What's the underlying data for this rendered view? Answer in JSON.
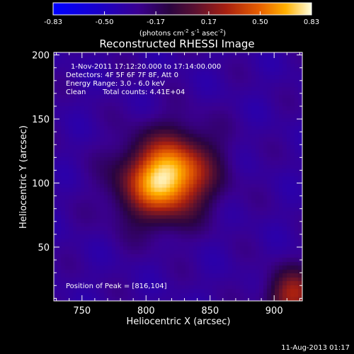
{
  "chart_data": {
    "type": "heatmap",
    "title": "Reconstructed RHESSI Image",
    "xlabel": "Heliocentric X (arcsec)",
    "ylabel": "Heliocentric Y (arcsec)",
    "xlim": [
      728,
      922
    ],
    "ylim": [
      8,
      202
    ],
    "x_ticks": [
      "750",
      "800",
      "850",
      "900"
    ],
    "x_tick_values": [
      750,
      800,
      850,
      900
    ],
    "y_ticks": [
      "50",
      "100",
      "150",
      "200"
    ],
    "y_tick_values": [
      50,
      100,
      150,
      200
    ],
    "colorbar": {
      "min": -0.83,
      "max": 0.83,
      "tick_labels": [
        "-0.83",
        "-0.50",
        "-0.17",
        "0.17",
        "0.50",
        "0.83"
      ],
      "tick_values": [
        -0.83,
        -0.5,
        -0.17,
        0.17,
        0.5,
        0.83
      ],
      "label_main": "(photons cm",
      "label_sup1": "-2",
      "label_mid1": " s",
      "label_sup2": "-1",
      "label_mid2": " asec",
      "label_sup3": "-2",
      "label_end": ")"
    },
    "annotations": {
      "time_range": "1-Nov-2011 17:12:20.000 to 17:14:00.000",
      "detectors": "Detectors: 4F 5F 6F 7F 8F, Att 0",
      "energy_range": "Energy Range: 3.0 - 6.0 keV",
      "clean_label": "Clean",
      "total_counts": "Total counts: 4.41E+04",
      "peak_position": "Position of Peak = [816,104]"
    },
    "source": {
      "peak_x": 816,
      "peak_y": 104,
      "peak_value": 0.83,
      "sigma_x": 24,
      "sigma_y": 21,
      "background": -0.33
    },
    "footer_date": "11-Aug-2013 01:17"
  }
}
